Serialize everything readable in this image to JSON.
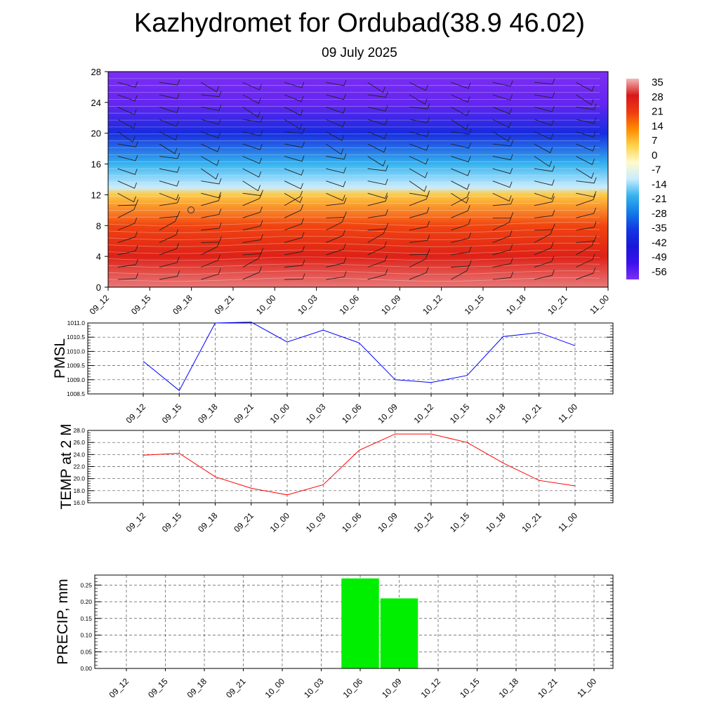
{
  "title": "Kazhydromet for Ordubad(38.9 46.02)",
  "subtitle": "09 July 2025",
  "chart_data": [
    {
      "type": "heatmap",
      "x_ticks": [
        "09_12",
        "09_15",
        "09_18",
        "09_21",
        "10_00",
        "10_03",
        "10_06",
        "10_09",
        "10_12",
        "10_15",
        "10_18",
        "10_21",
        "11_00"
      ],
      "y_ticks": [
        "0",
        "4",
        "8",
        "12",
        "16",
        "20",
        "24",
        "28"
      ],
      "ylim": [
        0,
        28
      ],
      "colorbar": {
        "labels": [
          "35",
          "28",
          "21",
          "14",
          "7",
          "0",
          "-7",
          "-14",
          "-21",
          "-28",
          "-35",
          "-42",
          "-49",
          "-56"
        ],
        "colors": [
          "#f2b8b8",
          "#d81818",
          "#ef3a12",
          "#ff8a00",
          "#ffd24a",
          "#fffacc",
          "#c8ecff",
          "#35b3ee",
          "#127ce6",
          "#1437e4",
          "#1818d8",
          "#3a10ee",
          "#7c2ff2"
        ]
      },
      "temperature_profile": {
        "heights": [
          0,
          4,
          8,
          12,
          13,
          16,
          20,
          24,
          28
        ],
        "values": [
          33,
          28,
          21,
          7,
          -14,
          -24,
          -42,
          -56,
          -58
        ]
      },
      "overlays": "wind barbs"
    },
    {
      "type": "line",
      "ylabel": "PMSL",
      "x_ticks": [
        "09_12",
        "09_15",
        "09_18",
        "09_21",
        "10_00",
        "10_03",
        "10_06",
        "10_09",
        "10_12",
        "10_15",
        "10_18",
        "10_21",
        "11_00"
      ],
      "y_ticks": [
        "1011.0",
        "1010.5",
        "1010.0",
        "1009.5",
        "1009.0",
        "1008.5"
      ],
      "ylim": [
        1008.5,
        1011.0
      ],
      "values": [
        1009.65,
        1008.62,
        1011.0,
        1011.03,
        1010.33,
        1010.75,
        1010.3,
        1009.0,
        1008.9,
        1009.15,
        1010.52,
        1010.66,
        1010.2
      ],
      "color": "#0000ff"
    },
    {
      "type": "line",
      "ylabel": "TEMP at 2 M",
      "x_ticks": [
        "09_12",
        "09_15",
        "09_18",
        "09_21",
        "10_00",
        "10_03",
        "10_06",
        "10_09",
        "10_12",
        "10_15",
        "10_18",
        "10_21",
        "11_00"
      ],
      "y_ticks": [
        "28.0",
        "26.0",
        "24.0",
        "22.0",
        "20.0",
        "18.0",
        "16.0"
      ],
      "ylim": [
        16.0,
        28.0
      ],
      "values": [
        23.9,
        24.2,
        20.3,
        18.4,
        17.3,
        19.0,
        24.7,
        27.4,
        27.4,
        26.0,
        22.6,
        19.7,
        18.8
      ],
      "color": "#ff0000"
    },
    {
      "type": "bar",
      "ylabel": "PRECIP, mm",
      "x_ticks": [
        "09_12",
        "09_15",
        "09_18",
        "09_21",
        "10_00",
        "10_03",
        "10_06",
        "10_09",
        "10_12",
        "10_15",
        "10_18",
        "10_21",
        "11_00"
      ],
      "y_ticks": [
        "0.25",
        "0.20",
        "0.15",
        "0.10",
        "0.05",
        "0.00"
      ],
      "ylim": [
        0.0,
        0.28
      ],
      "values": [
        0,
        0,
        0,
        0,
        0,
        0,
        0.27,
        0.21,
        0,
        0,
        0,
        0,
        0
      ],
      "color": "#00ee00"
    }
  ]
}
